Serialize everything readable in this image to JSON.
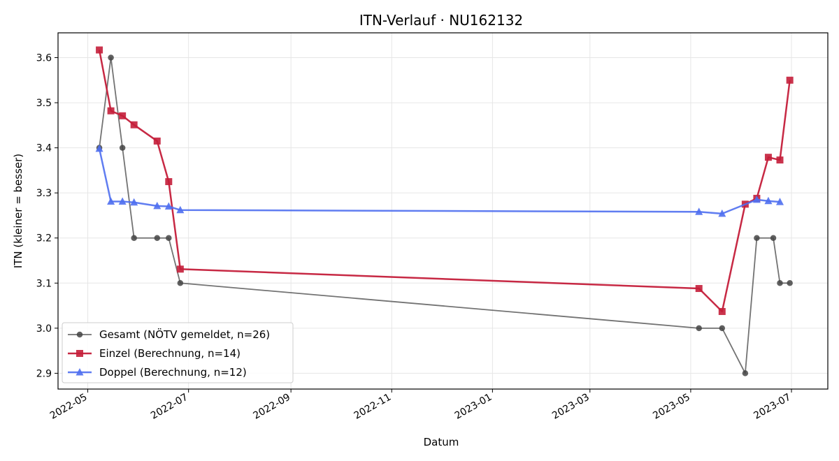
{
  "chart_data": {
    "type": "line",
    "title": "ITN-Verlauf · NU162132",
    "xlabel": "Datum",
    "ylabel": "ITN  (kleiner = besser)",
    "xlim": [
      "2022-04-13",
      "2023-07-23"
    ],
    "ylim": [
      2.865,
      3.655
    ],
    "x_ticks": [
      "2022-05",
      "2022-07",
      "2022-09",
      "2022-11",
      "2023-01",
      "2023-03",
      "2023-05",
      "2023-07"
    ],
    "y_ticks": [
      "2.9",
      "3.0",
      "3.1",
      "3.2",
      "3.3",
      "3.4",
      "3.5",
      "3.6"
    ],
    "grid": true,
    "legend_position": "lower-left",
    "series": [
      {
        "name": "Gesamt (NÖTV gemeldet, n=26)",
        "color": "#444444",
        "marker": "circle",
        "points": [
          [
            "2022-05-08",
            3.4
          ],
          [
            "2022-05-15",
            3.6
          ],
          [
            "2022-05-22",
            3.4
          ],
          [
            "2022-05-29",
            3.2
          ],
          [
            "2022-06-12",
            3.2
          ],
          [
            "2022-06-19",
            3.2
          ],
          [
            "2022-06-26",
            3.1
          ],
          [
            "2023-05-06",
            3.0
          ],
          [
            "2023-05-20",
            3.0
          ],
          [
            "2023-06-03",
            2.9
          ],
          [
            "2023-06-10",
            3.2
          ],
          [
            "2023-06-20",
            3.2
          ],
          [
            "2023-06-24",
            3.1
          ],
          [
            "2023-06-30",
            3.1
          ]
        ]
      },
      {
        "name": "Einzel (Berechnung, n=14)",
        "color": "#c41e3a",
        "marker": "square",
        "points": [
          [
            "2022-05-08",
            3.617
          ],
          [
            "2022-05-15",
            3.482
          ],
          [
            "2022-05-22",
            3.471
          ],
          [
            "2022-05-29",
            3.451
          ],
          [
            "2022-06-12",
            3.415
          ],
          [
            "2022-06-19",
            3.325
          ],
          [
            "2022-06-26",
            3.131
          ],
          [
            "2023-05-06",
            3.088
          ],
          [
            "2023-05-20",
            3.037
          ],
          [
            "2023-06-03",
            3.275
          ],
          [
            "2023-06-10",
            3.288
          ],
          [
            "2023-06-17",
            3.379
          ],
          [
            "2023-06-24",
            3.373
          ],
          [
            "2023-06-30",
            3.55
          ]
        ]
      },
      {
        "name": "Doppel (Berechnung, n=12)",
        "color": "#4f6ff0",
        "marker": "triangle",
        "points": [
          [
            "2022-05-08",
            3.398
          ],
          [
            "2022-05-15",
            3.281
          ],
          [
            "2022-05-22",
            3.281
          ],
          [
            "2022-05-29",
            3.279
          ],
          [
            "2022-06-12",
            3.271
          ],
          [
            "2022-06-19",
            3.27
          ],
          [
            "2022-06-26",
            3.262
          ],
          [
            "2023-05-06",
            3.258
          ],
          [
            "2023-05-20",
            3.254
          ],
          [
            "2023-06-10",
            3.285
          ],
          [
            "2023-06-17",
            3.282
          ],
          [
            "2023-06-24",
            3.28
          ]
        ]
      }
    ]
  }
}
